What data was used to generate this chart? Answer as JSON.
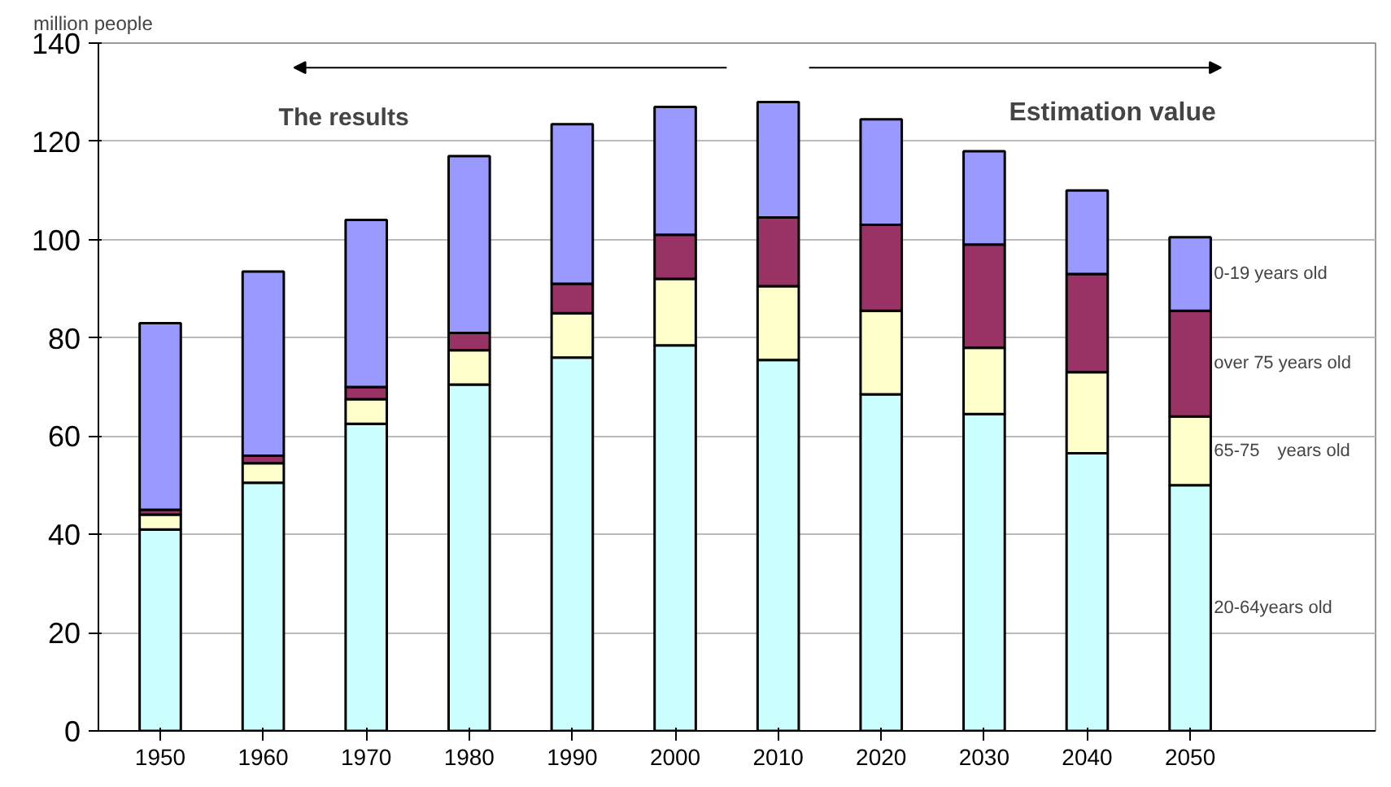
{
  "chart_data": {
    "type": "bar",
    "stacked": true,
    "ylabel": "million people",
    "categories": [
      "1950",
      "1960",
      "1970",
      "1980",
      "1990",
      "2000",
      "2010",
      "2020",
      "2030",
      "2040",
      "2050"
    ],
    "series": [
      {
        "name": "20-64years old",
        "color": "#ccffff",
        "values": [
          41,
          50.5,
          62.5,
          70.5,
          76,
          78.5,
          75.5,
          68.5,
          64.5,
          56.5,
          50
        ]
      },
      {
        "name": "65-75　years old",
        "color": "#ffffcc",
        "values": [
          3,
          4,
          5,
          7,
          9,
          13.5,
          15,
          17,
          13.5,
          16.5,
          14
        ]
      },
      {
        "name": "over 75 years old",
        "color": "#993366",
        "values": [
          1,
          1.5,
          2.5,
          3.5,
          6,
          9,
          14,
          17.5,
          21,
          20,
          21.5
        ]
      },
      {
        "name": "0-19 years old",
        "color": "#9999ff",
        "values": [
          38,
          37.5,
          34,
          36,
          32.5,
          26,
          23.5,
          21.5,
          19,
          17,
          15
        ]
      }
    ],
    "ylim": [
      0,
      140
    ],
    "yticks": [
      0,
      20,
      40,
      60,
      80,
      100,
      120,
      140
    ],
    "grid": "y",
    "annotations": [
      "The results",
      "Estimation value"
    ]
  }
}
